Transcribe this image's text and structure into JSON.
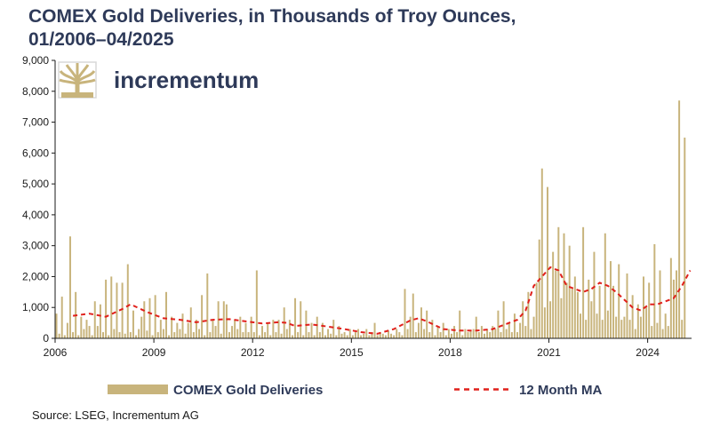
{
  "title_line1": "COMEX Gold Deliveries, in Thousands of Troy Ounces,",
  "title_line2": "01/2006–04/2025",
  "brand": {
    "name": "incrementum",
    "icon": "tree-logo-icon"
  },
  "source": "Source: LSEG, Incrementum AG",
  "colors": {
    "bars": "#c8b47c",
    "ma": "#e0201b",
    "title": "#2e3a59",
    "axis": "#1a1a1a"
  },
  "chart_data": {
    "type": "bar",
    "title": "COMEX Gold Deliveries, in Thousands of Troy Ounces, 01/2006–04/2025",
    "xlabel": "",
    "ylabel": "",
    "x_ticks": [
      "2006",
      "2009",
      "2012",
      "2015",
      "2018",
      "2021",
      "2024"
    ],
    "y_ticks": [
      "0",
      "1,000",
      "2,000",
      "3,000",
      "4,000",
      "5,000",
      "6,000",
      "7,000",
      "8,000",
      "9,000"
    ],
    "ylim": [
      0,
      9000
    ],
    "xlim": [
      "2006-01",
      "2025-04"
    ],
    "grid": false,
    "legend_position": "bottom",
    "series": [
      {
        "name": "COMEX Gold Deliveries",
        "type": "bar",
        "start": "2006-01",
        "frequency": "monthly",
        "values": [
          800,
          150,
          1350,
          100,
          500,
          3300,
          200,
          1500,
          100,
          700,
          300,
          600,
          400,
          100,
          1200,
          400,
          1100,
          200,
          1900,
          100,
          2000,
          300,
          1800,
          200,
          1800,
          150,
          2400,
          200,
          900,
          100,
          300,
          700,
          1200,
          250,
          1300,
          100,
          1400,
          200,
          600,
          300,
          1500,
          100,
          700,
          200,
          500,
          300,
          800,
          150,
          500,
          1000,
          200,
          600,
          300,
          1400,
          100,
          2100,
          200,
          600,
          400,
          1200,
          150,
          1200,
          1100,
          200,
          400,
          600,
          300,
          700,
          200,
          500,
          200,
          700,
          200,
          2200,
          100,
          400,
          200,
          500,
          100,
          600,
          200,
          600,
          150,
          1000,
          300,
          600,
          100,
          1300,
          200,
          1200,
          100,
          900,
          200,
          500,
          100,
          700,
          200,
          500,
          100,
          300,
          150,
          600,
          100,
          400,
          150,
          200,
          100,
          300,
          100,
          200,
          300,
          100,
          150,
          300,
          100,
          200,
          500,
          100,
          200,
          150,
          100,
          250,
          150,
          100,
          300,
          200,
          100,
          1600,
          300,
          700,
          1450,
          200,
          500,
          1000,
          300,
          900,
          200,
          600,
          100,
          400,
          200,
          500,
          100,
          300,
          150,
          400,
          200,
          900,
          100,
          300,
          200,
          250,
          300,
          700,
          200,
          400,
          150,
          300,
          200,
          400,
          300,
          900,
          200,
          1200,
          300,
          500,
          200,
          800,
          200,
          500,
          1200,
          400,
          1500,
          300,
          700,
          1800,
          3200,
          5500,
          1000,
          4900,
          1200,
          2800,
          2200,
          3600,
          1300,
          3400,
          1800,
          3000,
          1600,
          2000,
          1500,
          800,
          3600,
          600,
          1900,
          1200,
          2800,
          800,
          1700,
          600,
          3400,
          900,
          2500,
          1700,
          700,
          2400,
          600,
          700,
          2100,
          600,
          1400,
          300,
          1100,
          700,
          2000,
          1000,
          1800,
          400,
          3050,
          500,
          2200,
          300,
          800,
          400,
          2600,
          1900,
          2200,
          7700,
          600,
          6500
        ]
      },
      {
        "name": "12 Month MA",
        "type": "line",
        "style": "dashed",
        "points": [
          [
            "2006-07",
            730
          ],
          [
            "2007-01",
            800
          ],
          [
            "2007-07",
            700
          ],
          [
            "2008-01",
            950
          ],
          [
            "2008-04",
            1100
          ],
          [
            "2008-10",
            850
          ],
          [
            "2009-04",
            650
          ],
          [
            "2009-10",
            600
          ],
          [
            "2010-04",
            520
          ],
          [
            "2010-10",
            600
          ],
          [
            "2011-04",
            620
          ],
          [
            "2011-10",
            550
          ],
          [
            "2012-04",
            480
          ],
          [
            "2012-10",
            520
          ],
          [
            "2013-01",
            500
          ],
          [
            "2013-04",
            400
          ],
          [
            "2013-10",
            450
          ],
          [
            "2014-04",
            380
          ],
          [
            "2014-10",
            300
          ],
          [
            "2015-04",
            200
          ],
          [
            "2015-10",
            150
          ],
          [
            "2016-04",
            300
          ],
          [
            "2016-10",
            580
          ],
          [
            "2017-01",
            650
          ],
          [
            "2017-04",
            550
          ],
          [
            "2017-10",
            300
          ],
          [
            "2018-04",
            250
          ],
          [
            "2018-10",
            250
          ],
          [
            "2019-04",
            300
          ],
          [
            "2019-10",
            500
          ],
          [
            "2020-01",
            600
          ],
          [
            "2020-04",
            900
          ],
          [
            "2020-07",
            1700
          ],
          [
            "2020-10",
            2000
          ],
          [
            "2021-01",
            2300
          ],
          [
            "2021-04",
            2200
          ],
          [
            "2021-07",
            1700
          ],
          [
            "2021-10",
            1600
          ],
          [
            "2022-01",
            1500
          ],
          [
            "2022-04",
            1600
          ],
          [
            "2022-07",
            1800
          ],
          [
            "2022-10",
            1700
          ],
          [
            "2023-01",
            1500
          ],
          [
            "2023-07",
            1000
          ],
          [
            "2023-10",
            900
          ],
          [
            "2024-01",
            1100
          ],
          [
            "2024-04",
            1100
          ],
          [
            "2024-07",
            1200
          ],
          [
            "2024-10",
            1300
          ],
          [
            "2025-01",
            1700
          ],
          [
            "2025-04",
            2200
          ]
        ]
      }
    ]
  }
}
